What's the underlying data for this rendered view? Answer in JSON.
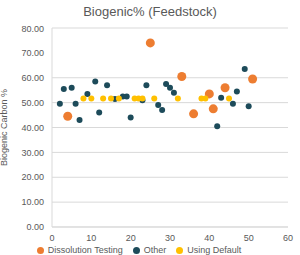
{
  "chart_data": {
    "type": "scatter",
    "title": "Biogenic% (Feedstock)",
    "y_label": "Biogenic Carbon %",
    "xlim": [
      0,
      60
    ],
    "xticks": [
      0,
      10,
      20,
      30,
      40,
      50,
      60
    ],
    "ylim": [
      0,
      80
    ],
    "yticks": [
      {
        "value": 0,
        "label": "0.00"
      },
      {
        "value": 10,
        "label": "10.00"
      },
      {
        "value": 20,
        "label": "20.00"
      },
      {
        "value": 30,
        "label": "30.00"
      },
      {
        "value": 40,
        "label": "40.00"
      },
      {
        "value": 50,
        "label": "50.00"
      },
      {
        "value": 60,
        "label": "60.00"
      },
      {
        "value": 70,
        "label": "70.00"
      },
      {
        "value": 80,
        "label": "80.00"
      }
    ],
    "grid": true,
    "legend": "bottom",
    "series": [
      {
        "name": "Dissolution Testing",
        "color": "#ed7d31",
        "x": [
          4,
          25,
          33,
          36,
          40,
          41,
          44,
          51
        ],
        "values": [
          44.5,
          74,
          60.5,
          45.5,
          53.5,
          47.5,
          56,
          59.5
        ]
      },
      {
        "name": "Other",
        "color": "#1d4b5a",
        "x": [
          2,
          3,
          5,
          6,
          7,
          9,
          11,
          12,
          14,
          16,
          18,
          19,
          20,
          23,
          24,
          27,
          28,
          29,
          30,
          31,
          42,
          43,
          46,
          47,
          49,
          50
        ],
        "values": [
          49.5,
          55.5,
          56,
          49.5,
          43,
          53.5,
          58.5,
          46,
          57,
          51.5,
          52.5,
          52.5,
          44,
          51,
          57,
          49,
          47,
          57.5,
          56,
          54,
          40.5,
          52,
          49.5,
          54.5,
          63.5,
          48.5
        ]
      },
      {
        "name": "Using Default",
        "color": "#ffc000",
        "x": [
          8,
          10,
          13,
          15,
          17,
          21,
          22,
          23,
          26,
          32,
          38,
          39,
          45
        ],
        "values": [
          51.7,
          51.7,
          51.7,
          51.7,
          51.7,
          51.7,
          51.7,
          51.7,
          51.7,
          51.7,
          51.7,
          51.7,
          51.7
        ]
      }
    ]
  }
}
